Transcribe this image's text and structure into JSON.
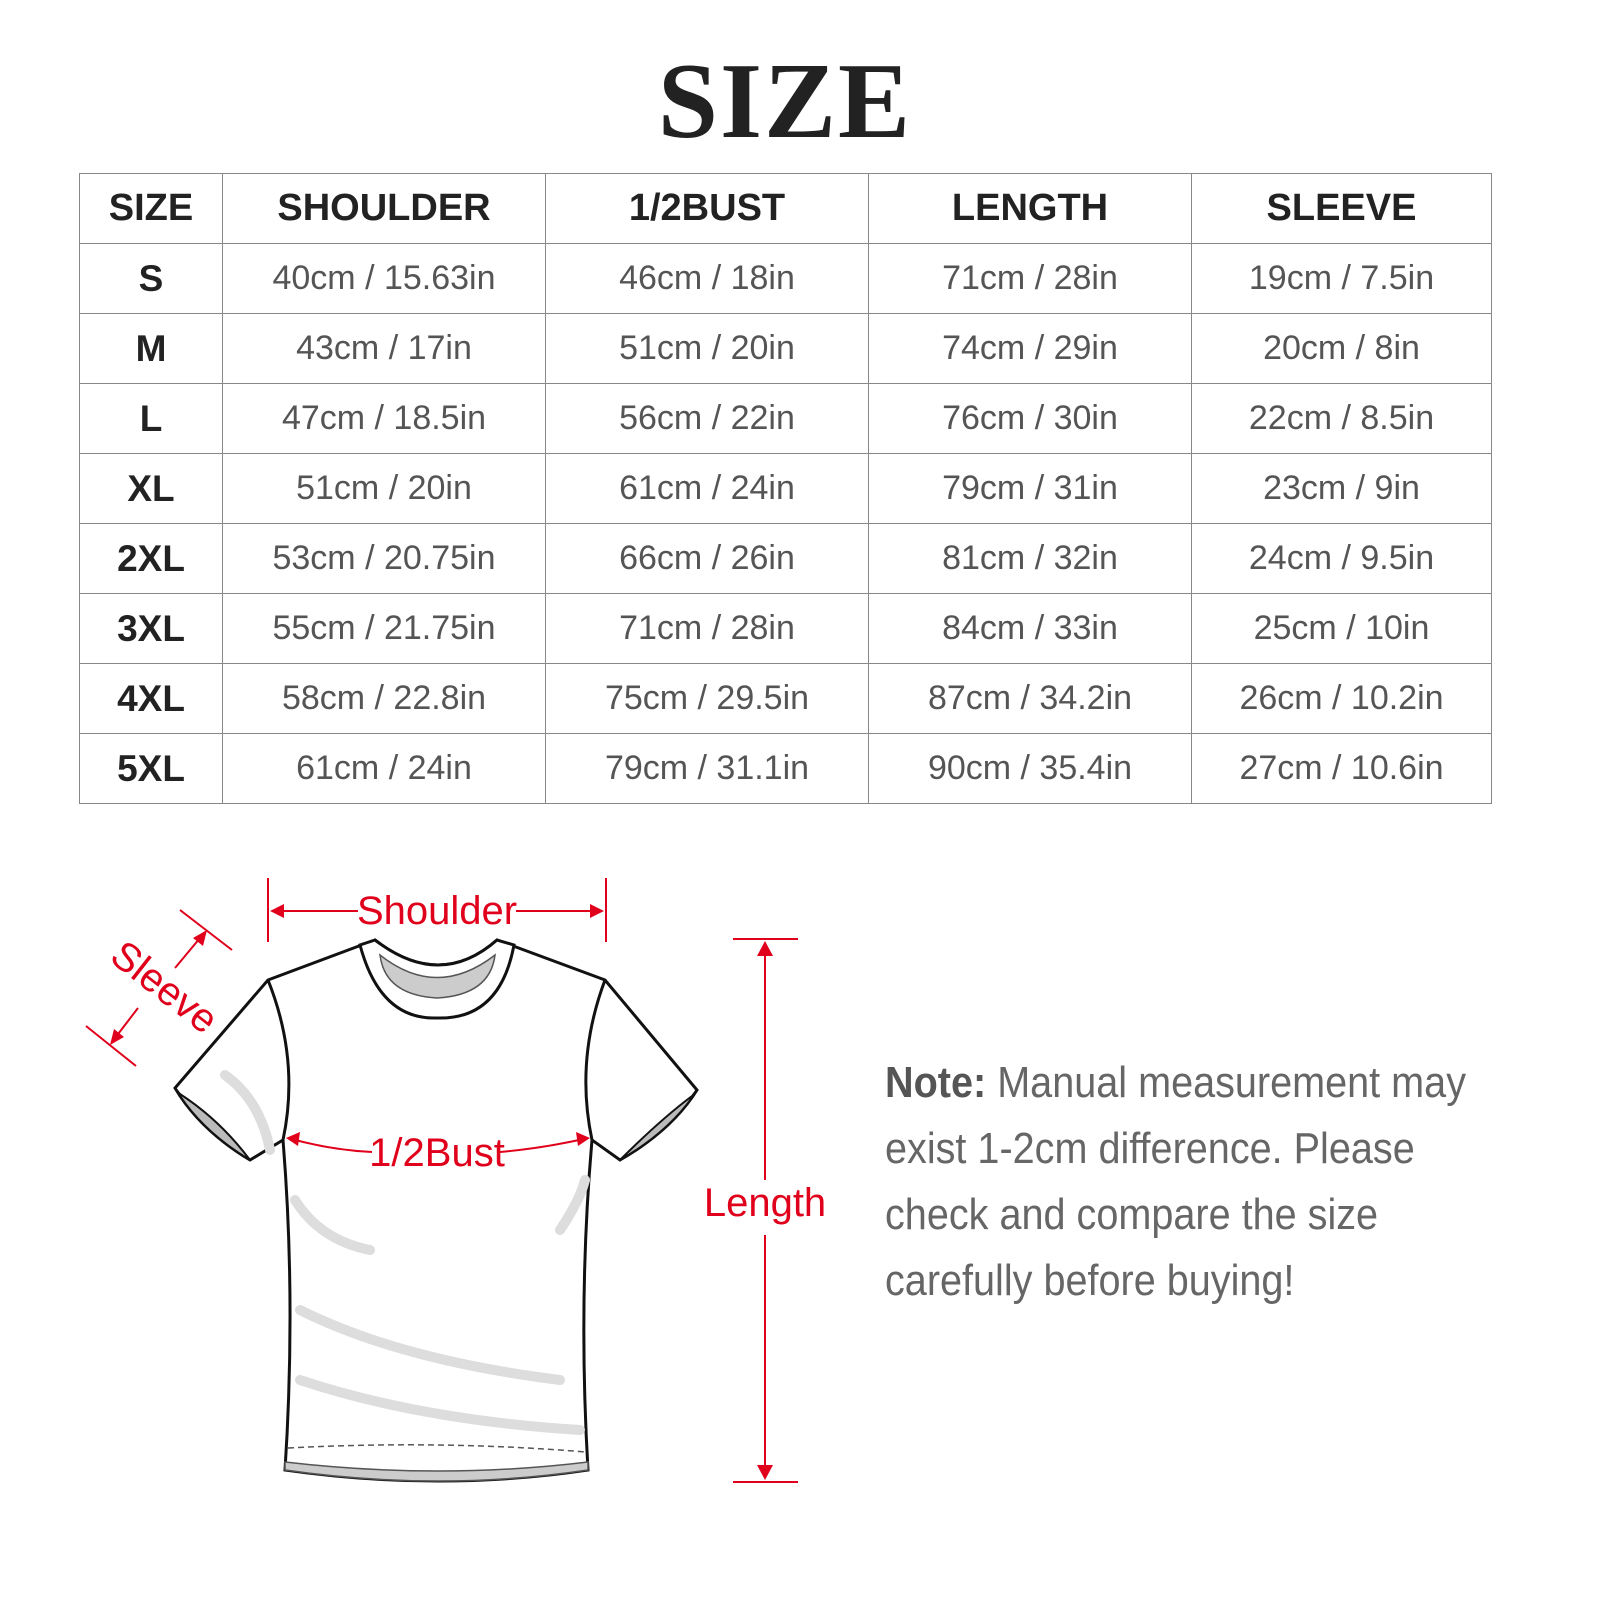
{
  "title": "SIZE",
  "table": {
    "headers": [
      "SIZE",
      "SHOULDER",
      "1/2BUST",
      "LENGTH",
      "SLEEVE"
    ],
    "rows": [
      [
        "S",
        "40cm / 15.63in",
        "46cm / 18in",
        "71cm / 28in",
        "19cm / 7.5in"
      ],
      [
        "M",
        "43cm / 17in",
        "51cm / 20in",
        "74cm / 29in",
        "20cm / 8in"
      ],
      [
        "L",
        "47cm / 18.5in",
        "56cm / 22in",
        "76cm / 30in",
        "22cm / 8.5in"
      ],
      [
        "XL",
        "51cm / 20in",
        "61cm / 24in",
        "79cm / 31in",
        "23cm / 9in"
      ],
      [
        "2XL",
        "53cm / 20.75in",
        "66cm / 26in",
        "81cm / 32in",
        "24cm / 9.5in"
      ],
      [
        "3XL",
        "55cm / 21.75in",
        "71cm / 28in",
        "84cm / 33in",
        "25cm / 10in"
      ],
      [
        "4XL",
        "58cm / 22.8in",
        "75cm / 29.5in",
        "87cm / 34.2in",
        "26cm / 10.2in"
      ],
      [
        "5XL",
        "61cm / 24in",
        "79cm / 31.1in",
        "90cm / 35.4in",
        "27cm / 10.6in"
      ]
    ]
  },
  "diagram": {
    "labels": {
      "shoulder": "Shoulder",
      "sleeve": "Sleeve",
      "bust": "1/2Bust",
      "length": "Length"
    },
    "accent_color": "#e0001b"
  },
  "note": {
    "prefix": "Note:",
    "text": " Manual measurement may exist 1-2cm difference. Please check and compare the size carefully before buying!"
  }
}
